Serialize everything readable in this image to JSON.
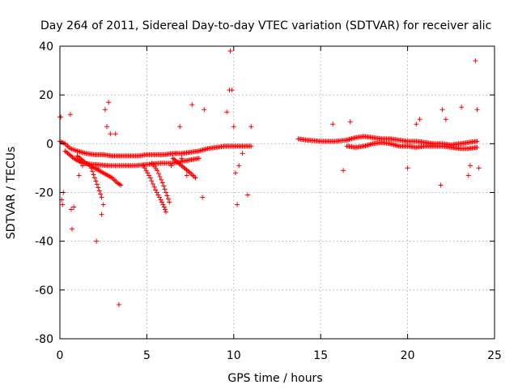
{
  "chart_data": {
    "type": "scatter",
    "title": "Day 264 of 2011, Sidereal Day-to-day VTEC variation (SDTVAR) for receiver alic",
    "xlabel": "GPS time / hours",
    "ylabel": "SDTVAR / TECUs",
    "xlim": [
      0,
      25
    ],
    "ylim": [
      -80,
      40
    ],
    "xticks": [
      0,
      5,
      10,
      15,
      20,
      25
    ],
    "yticks": [
      -80,
      -60,
      -40,
      -20,
      0,
      20,
      40
    ],
    "grid": true,
    "marker": "+",
    "color": "#ff0000",
    "series": [
      {
        "name": "dense_trends",
        "segments": [
          {
            "x": [
              0.0,
              0.3,
              0.6,
              1.0,
              1.5,
              2.0,
              2.5,
              3.0,
              3.5,
              4.0,
              4.5,
              5.0,
              5.5,
              6.0,
              6.5,
              7.0,
              7.5,
              8.0,
              8.5,
              9.0,
              9.5,
              10.0,
              10.5,
              11.0
            ],
            "y": [
              1,
              0,
              -2,
              -3,
              -4,
              -4.5,
              -4.5,
              -5,
              -5,
              -5,
              -5,
              -4.5,
              -4.5,
              -4.5,
              -4,
              -4,
              -3.5,
              -3,
              -2,
              -1.5,
              -1,
              -1,
              -1,
              -1
            ]
          },
          {
            "x": [
              0.3,
              0.8,
              1.3,
              2.0,
              2.8,
              3.5,
              4.3,
              5.0,
              5.8,
              6.5,
              7.2,
              8.0
            ],
            "y": [
              -3,
              -6,
              -8,
              -8.5,
              -9,
              -9,
              -9,
              -8.5,
              -8,
              -8,
              -7,
              -6
            ]
          },
          {
            "x": [
              1.0,
              1.5,
              2.0,
              2.5,
              3.0,
              3.3,
              3.5
            ],
            "y": [
              -5,
              -8,
              -10,
              -12,
              -14,
              -16,
              -17
            ]
          },
          {
            "x": [
              1.8,
              2.0,
              2.2,
              2.4
            ],
            "y": [
              -10,
              -14,
              -18,
              -22
            ]
          },
          {
            "x": [
              4.8,
              5.2,
              5.5,
              5.8,
              6.0,
              6.1
            ],
            "y": [
              -9,
              -14,
              -19,
              -23,
              -26,
              -28
            ]
          },
          {
            "x": [
              5.3,
              5.6,
              5.9,
              6.1,
              6.3
            ],
            "y": [
              -8,
              -11,
              -16,
              -20,
              -24
            ]
          },
          {
            "x": [
              6.5,
              7.0,
              7.5,
              7.8
            ],
            "y": [
              -6,
              -9,
              -12,
              -14
            ]
          },
          {
            "x": [
              13.7,
              14.2,
              15.0,
              15.8,
              16.5,
              17.0,
              17.5,
              18.0,
              18.5,
              19.0,
              19.5,
              20.0,
              20.5,
              21.0,
              21.5,
              22.0,
              22.5,
              23.0,
              23.5,
              24.0
            ],
            "y": [
              2,
              1.5,
              1,
              1,
              1.5,
              2.5,
              3,
              2.5,
              2,
              2,
              1.5,
              1,
              1,
              0.5,
              0,
              0,
              -0.5,
              0,
              0.5,
              1
            ]
          },
          {
            "x": [
              16.5,
              17.0,
              17.5,
              18.0,
              18.5,
              19.0,
              19.5,
              20.0,
              20.5,
              21.0,
              21.5,
              22.0,
              22.5,
              23.0,
              23.5,
              24.0
            ],
            "y": [
              -1,
              -1.5,
              -1,
              0,
              0.5,
              0,
              -1,
              -1,
              -1.5,
              -1,
              -1,
              -1,
              -1.5,
              -2,
              -2,
              -1.5
            ]
          }
        ]
      },
      {
        "name": "outliers",
        "x": [
          0.0,
          0.05,
          0.1,
          0.15,
          0.2,
          0.6,
          0.65,
          0.7,
          0.8,
          1.1,
          1.3,
          2.1,
          2.15,
          2.4,
          2.5,
          2.6,
          2.7,
          2.8,
          2.9,
          3.2,
          3.4,
          6.4,
          6.7,
          6.9,
          7.0,
          7.3,
          7.6,
          8.2,
          8.3,
          9.6,
          9.75,
          9.8,
          9.9,
          10.0,
          10.1,
          10.2,
          10.3,
          10.5,
          10.8,
          11.0,
          15.7,
          16.3,
          16.7,
          20.0,
          20.5,
          20.7,
          21.9,
          22.0,
          22.2,
          23.1,
          23.5,
          23.6,
          23.9,
          24.0,
          24.1
        ],
        "y": [
          11,
          11,
          -23,
          -25,
          -20,
          12,
          -27,
          -35,
          -26,
          -13,
          -9,
          -40,
          -10,
          -29,
          -25,
          14,
          7,
          17,
          4,
          4,
          -66,
          -9,
          -4,
          7,
          -6,
          -13,
          16,
          -22,
          14,
          13,
          22,
          38,
          22,
          7,
          -12,
          -25,
          -9,
          -4,
          -21,
          7,
          8,
          -11,
          9,
          -10,
          8,
          10,
          -17,
          14,
          10,
          15,
          -13,
          -9,
          34,
          14,
          -10
        ]
      }
    ]
  }
}
